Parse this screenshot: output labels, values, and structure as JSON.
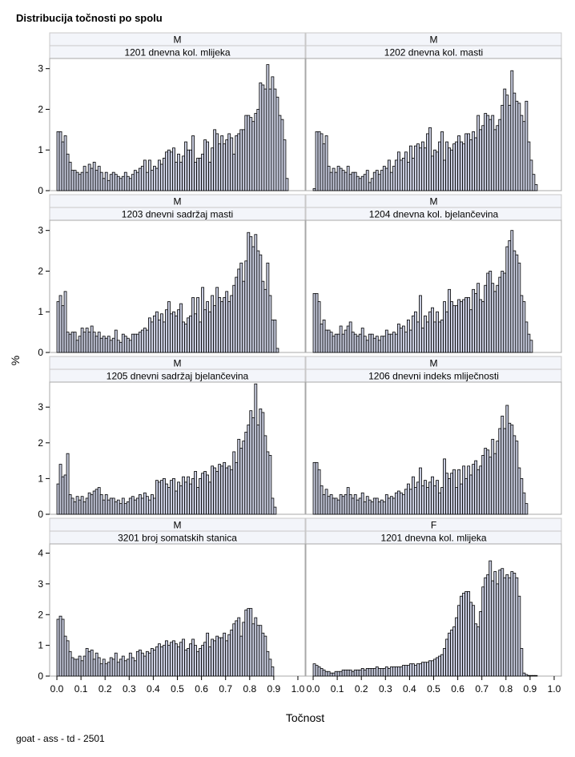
{
  "chart_data": {
    "type": "bar",
    "title": "Distribucija točnosti po spolu",
    "xlabel": "Točnost",
    "ylabel": "%",
    "footnote": "goat - ass - td - 2501",
    "x_ticks": [
      0.0,
      0.1,
      0.2,
      0.3,
      0.4,
      0.5,
      0.6,
      0.7,
      0.8,
      0.9,
      1.0
    ],
    "x_tick_labels": [
      "0.0",
      "0.1",
      "0.2",
      "0.3",
      "0.4",
      "0.5",
      "0.6",
      "0.7",
      "0.8",
      "0.9",
      "1.0"
    ],
    "xlim": [
      -0.03,
      1.03
    ],
    "bin_start": 0.0,
    "bin_width": 0.01,
    "rows": [
      {
        "ylim": [
          0,
          3.25
        ],
        "yticks": [
          0,
          1,
          2,
          3
        ],
        "ytick_labels": [
          "0",
          "1",
          "2",
          "3"
        ]
      },
      {
        "ylim": [
          0,
          3.25
        ],
        "yticks": [
          0,
          1,
          2,
          3
        ],
        "ytick_labels": [
          "0",
          "1",
          "2",
          "3"
        ]
      },
      {
        "ylim": [
          0,
          3.7
        ],
        "yticks": [
          0,
          1,
          2,
          3
        ],
        "ytick_labels": [
          "0",
          "1",
          "2",
          "3"
        ]
      },
      {
        "ylim": [
          0,
          4.3
        ],
        "yticks": [
          0,
          1,
          2,
          3,
          4
        ],
        "ytick_labels": [
          "0",
          "1",
          "2",
          "3",
          "4"
        ]
      }
    ],
    "panels": [
      {
        "sex": "M",
        "trait": "1201 dnevna kol. mlijeka",
        "values": [
          1.45,
          1.45,
          1.2,
          1.35,
          0.9,
          0.7,
          0.5,
          0.5,
          0.45,
          0.4,
          0.45,
          0.6,
          0.45,
          0.65,
          0.55,
          0.7,
          0.5,
          0.6,
          0.45,
          0.3,
          0.45,
          0.25,
          0.4,
          0.45,
          0.4,
          0.35,
          0.3,
          0.35,
          0.45,
          0.35,
          0.3,
          0.4,
          0.5,
          0.45,
          0.55,
          0.6,
          0.75,
          0.45,
          0.75,
          0.5,
          0.6,
          0.55,
          0.75,
          0.65,
          0.8,
          0.95,
          1.0,
          0.95,
          1.05,
          0.7,
          0.9,
          0.7,
          0.85,
          1.2,
          1.0,
          1.0,
          1.35,
          0.7,
          0.8,
          0.8,
          0.9,
          1.25,
          1.2,
          0.7,
          1.05,
          1.5,
          1.4,
          1.15,
          1.35,
          1.15,
          1.25,
          1.4,
          1.3,
          0.9,
          1.35,
          1.4,
          1.5,
          1.5,
          1.85,
          1.85,
          1.8,
          1.7,
          1.9,
          2.0,
          2.65,
          2.6,
          2.5,
          3.1,
          2.5,
          2.8,
          2.5,
          2.3,
          1.85,
          1.75,
          1.25,
          0.3
        ]
      },
      {
        "sex": "M",
        "trait": "1202 dnevna kol. masti",
        "values": [
          0.05,
          1.45,
          1.45,
          1.4,
          1.15,
          1.35,
          0.6,
          0.45,
          0.55,
          0.45,
          0.6,
          0.55,
          0.5,
          0.45,
          0.6,
          0.4,
          0.45,
          0.45,
          0.35,
          0.3,
          0.35,
          0.4,
          0.5,
          0.2,
          0.3,
          0.45,
          0.5,
          0.4,
          0.5,
          0.6,
          0.55,
          0.75,
          0.45,
          0.6,
          0.75,
          0.95,
          0.75,
          0.8,
          0.95,
          0.7,
          1.1,
          0.8,
          1.1,
          1.15,
          1.05,
          1.2,
          1.05,
          1.4,
          1.55,
          0.85,
          1.0,
          0.95,
          1.2,
          1.45,
          0.75,
          1.2,
          1.05,
          1.0,
          1.15,
          1.2,
          1.35,
          1.2,
          1.15,
          1.4,
          1.4,
          1.25,
          1.45,
          1.3,
          1.85,
          1.5,
          1.6,
          1.9,
          1.85,
          1.75,
          1.85,
          1.5,
          1.6,
          1.75,
          2.1,
          2.5,
          2.35,
          2.1,
          2.95,
          2.4,
          2.2,
          2.15,
          1.85,
          1.7,
          2.2,
          1.2,
          0.75,
          0.4,
          0.15
        ]
      },
      {
        "sex": "M",
        "trait": "1203 dnevni sadržaj masti",
        "values": [
          1.25,
          1.4,
          1.15,
          1.5,
          0.5,
          0.45,
          0.5,
          0.5,
          0.3,
          0.4,
          0.6,
          0.5,
          0.6,
          0.5,
          0.65,
          0.5,
          0.4,
          0.5,
          0.35,
          0.4,
          0.35,
          0.4,
          0.3,
          0.35,
          0.55,
          0.3,
          0.25,
          0.45,
          0.4,
          0.35,
          0.3,
          0.45,
          0.45,
          0.45,
          0.5,
          0.55,
          0.6,
          0.55,
          0.85,
          0.75,
          0.9,
          1.0,
          0.8,
          0.95,
          0.75,
          1.05,
          1.25,
          0.95,
          1.0,
          0.9,
          1.05,
          1.2,
          0.75,
          0.7,
          0.85,
          0.9,
          1.35,
          0.95,
          1.35,
          0.75,
          1.6,
          1.05,
          1.25,
          1.0,
          1.4,
          1.15,
          1.6,
          1.35,
          1.25,
          1.35,
          1.5,
          1.25,
          1.4,
          1.65,
          1.85,
          2.05,
          2.2,
          1.75,
          2.25,
          2.95,
          2.85,
          2.6,
          2.9,
          2.5,
          2.4,
          1.75,
          1.55,
          2.2,
          1.4,
          0.8,
          0.8,
          0.1
        ]
      },
      {
        "sex": "M",
        "trait": "1204 dnevna kol. bjelančevina",
        "values": [
          1.45,
          1.45,
          1.25,
          0.7,
          0.8,
          0.55,
          0.55,
          0.5,
          0.4,
          0.45,
          0.45,
          0.65,
          0.45,
          0.55,
          0.65,
          0.75,
          0.5,
          0.45,
          0.4,
          0.45,
          0.6,
          0.4,
          0.3,
          0.45,
          0.45,
          0.35,
          0.4,
          0.3,
          0.4,
          0.4,
          0.55,
          0.45,
          0.45,
          0.5,
          0.45,
          0.7,
          0.6,
          0.65,
          0.5,
          0.8,
          0.55,
          0.9,
          1.0,
          0.75,
          1.4,
          0.6,
          0.9,
          0.75,
          1.0,
          1.1,
          0.75,
          1.0,
          0.75,
          0.8,
          1.25,
          1.0,
          1.55,
          1.25,
          1.15,
          1.15,
          1.3,
          1.25,
          1.3,
          1.35,
          1.35,
          1.05,
          1.55,
          1.45,
          1.7,
          1.3,
          1.25,
          1.65,
          1.95,
          2.0,
          1.7,
          1.5,
          1.65,
          1.85,
          2.0,
          1.95,
          2.6,
          2.75,
          3.0,
          2.5,
          2.4,
          2.2,
          1.4,
          1.25,
          0.75,
          0.45,
          0.3
        ]
      },
      {
        "sex": "M",
        "trait": "1205 dnevni sadržaj bjelančevina",
        "values": [
          0.85,
          1.4,
          1.05,
          1.1,
          1.7,
          0.55,
          0.45,
          0.35,
          0.5,
          0.4,
          0.5,
          0.35,
          0.45,
          0.6,
          0.55,
          0.65,
          0.7,
          0.75,
          0.55,
          0.4,
          0.55,
          0.4,
          0.45,
          0.45,
          0.35,
          0.4,
          0.3,
          0.45,
          0.3,
          0.35,
          0.45,
          0.5,
          0.4,
          0.45,
          0.55,
          0.45,
          0.6,
          0.5,
          0.4,
          0.55,
          0.45,
          0.95,
          0.9,
          0.95,
          1.0,
          0.85,
          0.75,
          0.95,
          1.0,
          0.65,
          0.9,
          0.8,
          1.05,
          0.9,
          1.05,
          0.85,
          1.0,
          1.2,
          0.75,
          1.0,
          1.15,
          1.2,
          1.1,
          0.9,
          1.35,
          1.3,
          1.2,
          1.4,
          1.35,
          1.45,
          1.3,
          1.35,
          1.25,
          1.75,
          1.45,
          2.1,
          1.85,
          2.05,
          2.3,
          2.5,
          2.9,
          2.7,
          3.65,
          2.5,
          2.95,
          2.85,
          2.2,
          1.75,
          1.65,
          0.45,
          0.2
        ]
      },
      {
        "sex": "M",
        "trait": "1206 dnevni indeks mliječnosti",
        "values": [
          1.45,
          1.45,
          1.25,
          0.8,
          0.55,
          0.7,
          0.5,
          0.55,
          0.45,
          0.45,
          0.4,
          0.55,
          0.5,
          0.55,
          0.75,
          0.55,
          0.45,
          0.55,
          0.4,
          0.45,
          0.6,
          0.35,
          0.5,
          0.4,
          0.35,
          0.45,
          0.45,
          0.35,
          0.4,
          0.35,
          0.55,
          0.45,
          0.5,
          0.45,
          0.6,
          0.65,
          0.6,
          0.55,
          0.7,
          0.85,
          0.7,
          1.05,
          0.75,
          0.9,
          1.3,
          0.8,
          0.95,
          0.75,
          0.9,
          1.05,
          0.8,
          0.95,
          0.6,
          0.75,
          1.55,
          1.15,
          1.0,
          1.15,
          1.25,
          0.75,
          1.25,
          0.85,
          1.35,
          1.0,
          1.35,
          1.1,
          1.4,
          1.5,
          1.25,
          1.35,
          1.65,
          1.85,
          1.8,
          1.6,
          2.1,
          1.7,
          2.05,
          2.4,
          2.75,
          2.4,
          3.05,
          2.55,
          2.5,
          2.2,
          2.05,
          1.3,
          1.0,
          0.6,
          0.3
        ]
      },
      {
        "sex": "M",
        "trait": "3201 broj somatskih stanica",
        "values": [
          1.85,
          1.95,
          1.85,
          1.3,
          1.15,
          0.8,
          0.6,
          0.55,
          0.55,
          0.65,
          0.5,
          0.65,
          0.9,
          0.8,
          0.85,
          0.55,
          0.75,
          0.6,
          0.4,
          0.55,
          0.4,
          0.45,
          0.6,
          0.55,
          0.75,
          0.45,
          0.55,
          0.65,
          0.5,
          0.55,
          0.75,
          0.6,
          0.5,
          0.8,
          0.85,
          0.75,
          0.65,
          0.8,
          0.75,
          0.9,
          0.85,
          0.95,
          1.05,
          0.95,
          1.0,
          1.15,
          1.0,
          1.1,
          1.15,
          1.05,
          0.95,
          1.1,
          1.2,
          0.85,
          0.9,
          1.05,
          1.2,
          1.0,
          0.8,
          0.9,
          1.0,
          1.1,
          1.4,
          0.95,
          1.2,
          1.15,
          1.3,
          1.25,
          1.25,
          1.4,
          1.15,
          1.35,
          1.5,
          1.7,
          1.8,
          1.9,
          1.3,
          1.75,
          2.15,
          2.2,
          2.2,
          1.7,
          1.9,
          1.65,
          1.65,
          1.4,
          1.3,
          0.8,
          0.55,
          0.3
        ]
      },
      {
        "sex": "F",
        "trait": "1201 dnevna kol. mlijeka",
        "values": [
          0.4,
          0.35,
          0.3,
          0.25,
          0.2,
          0.15,
          0.15,
          0.1,
          0.1,
          0.15,
          0.15,
          0.15,
          0.2,
          0.2,
          0.2,
          0.2,
          0.15,
          0.2,
          0.2,
          0.2,
          0.25,
          0.2,
          0.25,
          0.25,
          0.25,
          0.25,
          0.3,
          0.25,
          0.25,
          0.25,
          0.3,
          0.25,
          0.3,
          0.3,
          0.3,
          0.3,
          0.3,
          0.35,
          0.35,
          0.35,
          0.4,
          0.4,
          0.35,
          0.4,
          0.4,
          0.45,
          0.45,
          0.45,
          0.5,
          0.5,
          0.55,
          0.6,
          0.65,
          0.7,
          0.9,
          1.2,
          1.4,
          1.5,
          1.6,
          1.9,
          2.3,
          2.6,
          2.7,
          2.75,
          2.75,
          2.4,
          2.3,
          1.7,
          1.6,
          2.1,
          2.9,
          3.2,
          3.3,
          3.75,
          3.1,
          3.4,
          3.0,
          3.45,
          3.5,
          3.2,
          3.3,
          3.2,
          3.4,
          3.35,
          3.2,
          2.6,
          0.9,
          0.1,
          0.05,
          0.02,
          0.02,
          0.02,
          0.02
        ]
      }
    ]
  }
}
